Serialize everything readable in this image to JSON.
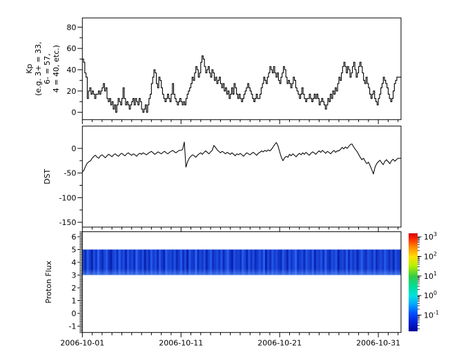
{
  "figure": {
    "background": "#ffffff",
    "line_color": "#000000"
  },
  "x_axis": {
    "domain_days": [
      0,
      32.3
    ],
    "tick_days": [
      0,
      10,
      20,
      30
    ],
    "tick_labels": [
      "2006-10-01",
      "2006-10-11",
      "2006-10-21",
      "2006-10-31"
    ],
    "minor_day_step": 1
  },
  "colorbar": {
    "base": "10",
    "tick_exponents": [
      "3",
      "2",
      "1",
      "0",
      "-1"
    ],
    "gradient_stops": [
      [
        "0%",
        "#d40000"
      ],
      [
        "6%",
        "#ff2a00"
      ],
      [
        "14%",
        "#ff8800"
      ],
      [
        "24%",
        "#ffe100"
      ],
      [
        "33%",
        "#b8f000"
      ],
      [
        "44%",
        "#33cc44"
      ],
      [
        "54%",
        "#00dd99"
      ],
      [
        "64%",
        "#00e0e0"
      ],
      [
        "72%",
        "#00aaff"
      ],
      [
        "81%",
        "#0055ff"
      ],
      [
        "90%",
        "#0022dd"
      ],
      [
        "100%",
        "#000099"
      ]
    ]
  },
  "chart_data": [
    {
      "type": "line",
      "id": "kp",
      "mode": "step",
      "ylabel_lines": [
        "Kp",
        "(e.g. 3+ = 33,",
        "6- = 57,",
        "4 = 40, etc.)"
      ],
      "start_date": "2006-10-01",
      "step_hours": 3,
      "yticks": [
        0,
        20,
        40,
        60,
        80
      ],
      "ytick_labels": [
        "0",
        "20",
        "40",
        "60",
        "80"
      ],
      "yminor": [
        10,
        30,
        50,
        70
      ],
      "ylim": [
        -7,
        89
      ],
      "values": [
        50,
        47,
        37,
        33,
        13,
        20,
        23,
        17,
        20,
        17,
        13,
        17,
        17,
        20,
        17,
        20,
        23,
        27,
        20,
        23,
        13,
        10,
        13,
        7,
        10,
        3,
        7,
        0,
        7,
        13,
        10,
        7,
        13,
        23,
        13,
        7,
        10,
        7,
        3,
        7,
        10,
        13,
        7,
        13,
        10,
        7,
        13,
        10,
        3,
        0,
        3,
        7,
        0,
        7,
        13,
        17,
        27,
        33,
        40,
        37,
        27,
        23,
        33,
        30,
        23,
        17,
        13,
        10,
        13,
        17,
        13,
        10,
        17,
        27,
        17,
        13,
        10,
        7,
        10,
        13,
        10,
        7,
        10,
        7,
        13,
        17,
        20,
        23,
        27,
        33,
        30,
        37,
        43,
        40,
        33,
        37,
        47,
        53,
        50,
        43,
        37,
        40,
        43,
        37,
        33,
        40,
        37,
        30,
        33,
        27,
        30,
        33,
        27,
        23,
        27,
        20,
        23,
        17,
        20,
        13,
        17,
        23,
        17,
        27,
        23,
        17,
        13,
        17,
        13,
        10,
        13,
        17,
        20,
        23,
        27,
        23,
        20,
        17,
        13,
        10,
        13,
        17,
        13,
        13,
        17,
        23,
        27,
        33,
        30,
        27,
        33,
        37,
        43,
        40,
        37,
        43,
        37,
        33,
        37,
        30,
        27,
        33,
        37,
        43,
        40,
        33,
        27,
        30,
        27,
        23,
        27,
        33,
        30,
        23,
        20,
        17,
        13,
        17,
        23,
        17,
        13,
        10,
        13,
        13,
        17,
        13,
        10,
        13,
        17,
        13,
        17,
        13,
        7,
        10,
        13,
        10,
        7,
        3,
        7,
        13,
        10,
        17,
        13,
        20,
        17,
        23,
        20,
        27,
        33,
        30,
        37,
        43,
        47,
        43,
        37,
        43,
        40,
        33,
        37,
        43,
        47,
        40,
        33,
        37,
        43,
        47,
        43,
        37,
        30,
        27,
        33,
        27,
        23,
        17,
        13,
        17,
        20,
        13,
        10,
        7,
        13,
        17,
        23,
        27,
        33,
        30,
        27,
        23,
        17,
        13,
        10,
        13,
        20,
        27,
        30,
        33
      ]
    },
    {
      "type": "line",
      "id": "dst",
      "mode": "linear",
      "ylabel": "DST",
      "start_date": "2006-10-01",
      "step_hours": 4,
      "yticks": [
        0,
        -50,
        -100,
        -150
      ],
      "ytick_labels": [
        "0",
        "-50",
        "-100",
        "-150"
      ],
      "yminor": [
        -25,
        -75,
        -125
      ],
      "ylim": [
        -160,
        45
      ],
      "values": [
        -48,
        -44,
        -36,
        -30,
        -27,
        -25,
        -20,
        -16,
        -14,
        -18,
        -20,
        -15,
        -13,
        -16,
        -19,
        -15,
        -12,
        -14,
        -17,
        -13,
        -11,
        -14,
        -16,
        -12,
        -10,
        -13,
        -15,
        -11,
        -9,
        -12,
        -14,
        -11,
        -13,
        -16,
        -12,
        -10,
        -12,
        -9,
        -11,
        -13,
        -10,
        -8,
        -6,
        -9,
        -12,
        -10,
        -7,
        -9,
        -11,
        -8,
        -6,
        -9,
        -11,
        -8,
        -6,
        -4,
        -7,
        -9,
        -6,
        -4,
        -4,
        -2,
        13,
        -38,
        -27,
        -20,
        -16,
        -13,
        -15,
        -18,
        -14,
        -11,
        -9,
        -12,
        -8,
        -5,
        -8,
        -11,
        -7,
        -4,
        6,
        2,
        -3,
        -6,
        -9,
        -6,
        -8,
        -11,
        -8,
        -10,
        -12,
        -9,
        -12,
        -15,
        -11,
        -13,
        -10,
        -13,
        -16,
        -12,
        -9,
        -11,
        -13,
        -10,
        -8,
        -11,
        -14,
        -10,
        -8,
        -5,
        -7,
        -4,
        -6,
        -3,
        -5,
        -2,
        3,
        8,
        12,
        5,
        -7,
        -18,
        -25,
        -19,
        -16,
        -18,
        -12,
        -15,
        -11,
        -14,
        -17,
        -13,
        -10,
        -13,
        -9,
        -12,
        -8,
        -11,
        -14,
        -10,
        -7,
        -9,
        -12,
        -8,
        -5,
        -8,
        -4,
        -7,
        -10,
        -6,
        -8,
        -11,
        -7,
        -4,
        -8,
        -5,
        -5,
        -2,
        2,
        -1,
        3,
        0,
        4,
        8,
        9,
        3,
        -2,
        -6,
        -12,
        -18,
        -23,
        -20,
        -26,
        -31,
        -28,
        -35,
        -43,
        -52,
        -38,
        -31,
        -27,
        -24,
        -29,
        -33,
        -26,
        -23,
        -27,
        -31,
        -25,
        -22,
        -26,
        -23,
        -20
      ]
    },
    {
      "type": "heatmap",
      "id": "proton_flux",
      "ylabel": "Proton Flux",
      "band_y": [
        3,
        5
      ],
      "yticks": [
        -1,
        0,
        1,
        2,
        3,
        4,
        5,
        6
      ],
      "ytick_labels": [
        "-1",
        "0",
        "1",
        "2",
        "3",
        "4",
        "5",
        "6"
      ],
      "yminor_step": 0.125,
      "ylim": [
        -1.5,
        6.4
      ],
      "low_color": "#000f9e",
      "high_color": "#2a6bff",
      "glow_color": "rgba(110,165,255,0.55)",
      "intensities": [
        0.6,
        0.3,
        0.8,
        0.5,
        0.2,
        0.7,
        0.4,
        0.9,
        0.5,
        0.3,
        0.6,
        0.8,
        0.4,
        0.2,
        0.55,
        0.7,
        0.35,
        0.85,
        0.5,
        0.65,
        0.25,
        0.75,
        0.45,
        0.6,
        0.3,
        0.9,
        0.55,
        0.4,
        0.7,
        0.2,
        0.6,
        0.35,
        0.8,
        0.5,
        0.65,
        0.3,
        0.75,
        0.45,
        0.25,
        0.85,
        0.55,
        0.6,
        0.4,
        0.7,
        0.3,
        0.5,
        0.8,
        0.35,
        0.65,
        0.2,
        0.75,
        0.5,
        0.4,
        0.9,
        0.3,
        0.6,
        0.45,
        0.7,
        0.25,
        0.55,
        0.8,
        0.35,
        0.5,
        0.65,
        0.4,
        0.75,
        0.3,
        0.6,
        0.85,
        0.45,
        0.2,
        0.7,
        0.5,
        0.55,
        0.35,
        0.8,
        0.6,
        0.25,
        0.75,
        0.4,
        0.65,
        0.3,
        0.5,
        0.7,
        0.45,
        0.85,
        0.2,
        0.6,
        0.35,
        0.75,
        0.5,
        0.65,
        0.4,
        0.3,
        0.8,
        0.55,
        0.25,
        0.7,
        0.45,
        0.6,
        0.9,
        0.35,
        0.5,
        0.65,
        0.3,
        0.75,
        0.55,
        0.4,
        0.8,
        0.25,
        0.6,
        0.5,
        0.7,
        0.35,
        0.85,
        0.45,
        0.3,
        0.65,
        0.55,
        0.75,
        0.2,
        0.5,
        0.6,
        0.4,
        0.8,
        0.3,
        0.7,
        0.45,
        0.65,
        0.25,
        0.55,
        0.85,
        0.5,
        0.35,
        0.7,
        0.6,
        0.4,
        0.75,
        0.3,
        0.5,
        0.65,
        0.45,
        0.8,
        0.55,
        0.35,
        0.6,
        0.25,
        0.7,
        0.5,
        0.4
      ]
    }
  ]
}
